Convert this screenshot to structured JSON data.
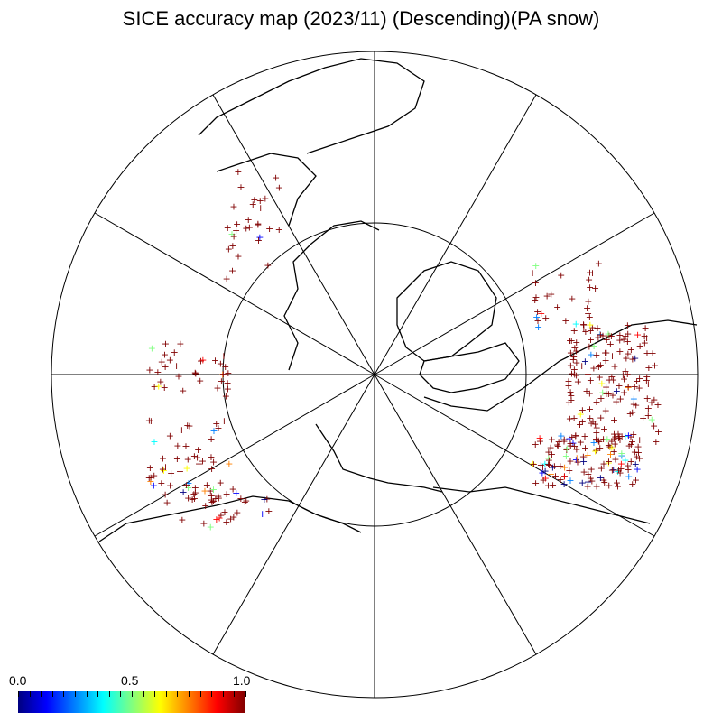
{
  "title": "SICE accuracy map (2023/11) (Descending)(PA snow)",
  "colorbar": {
    "min_label": "0.0",
    "mid_label": "0.5",
    "max_label": "1.0",
    "colors": [
      "#000080",
      "#0000ff",
      "#0080ff",
      "#00ffff",
      "#80ff80",
      "#ffff00",
      "#ff8000",
      "#ff0000",
      "#800000"
    ]
  },
  "map": {
    "projection": "north-polar-stereographic",
    "meridian_lines": 12,
    "latitude_circles": 2,
    "marker_symbol": "+",
    "marker_color_scale": "accuracy 0.0-1.0"
  }
}
